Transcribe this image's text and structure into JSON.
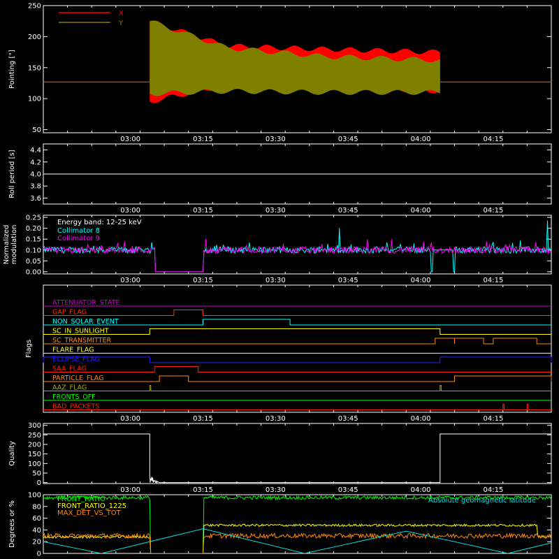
{
  "time_axis": {
    "start": "02:42",
    "end": "04:27",
    "ticks": [
      "03:00",
      "03:15",
      "03:30",
      "03:45",
      "04:00",
      "04:15"
    ]
  },
  "chart_data": [
    {
      "type": "line",
      "ylabel": "Pointing [\"]",
      "ylim": [
        45,
        250
      ],
      "yticks": [
        50,
        100,
        150,
        200,
        250
      ],
      "legend_position": "top-left",
      "series": [
        {
          "name": "X",
          "color": "#ff0000",
          "baseline": 127,
          "active": [
            "03:04",
            "04:04"
          ],
          "envelope_upper": [
            [
              "03:04",
              225
            ],
            [
              "03:20",
              185
            ],
            [
              "03:40",
              180
            ],
            [
              "04:04",
              175
            ]
          ],
          "envelope_lower": [
            [
              "03:04",
              95
            ],
            [
              "03:20",
              122
            ],
            [
              "03:40",
              120
            ],
            [
              "04:04",
              112
            ]
          ]
        },
        {
          "name": "Y",
          "color": "#808000",
          "baseline": 127,
          "active": [
            "03:04",
            "04:04"
          ],
          "envelope_upper": [
            [
              "03:04",
              225
            ],
            [
              "03:20",
              182
            ],
            [
              "03:40",
              168
            ],
            [
              "04:04",
              162
            ]
          ],
          "envelope_lower": [
            [
              "03:04",
              108
            ],
            [
              "03:20",
              112
            ],
            [
              "03:40",
              110
            ],
            [
              "04:04",
              110
            ]
          ]
        }
      ]
    },
    {
      "type": "line",
      "ylabel": "Roll period [s]",
      "ylim": [
        3.5,
        4.5
      ],
      "yticks": [
        3.6,
        3.8,
        4.0,
        4.2,
        4.4
      ],
      "series": [
        {
          "color": "#ffffff",
          "value": 4.0
        }
      ]
    },
    {
      "type": "line",
      "ylabel": "Normalized\nmodulation",
      "ylim": [
        -0.01,
        0.26
      ],
      "yticks": [
        0.0,
        0.05,
        0.1,
        0.15,
        0.2,
        0.25
      ],
      "annotation": "Energy band: 12-25 keV",
      "series": [
        {
          "name": "Collimator 8",
          "color": "#00ffff",
          "mean": 0.1,
          "gap": [
            "03:05",
            "03:15"
          ],
          "dropout": [
            "04:02",
            "04:07"
          ]
        },
        {
          "name": "Collimator 9",
          "color": "#ff00ff",
          "mean": 0.1,
          "gap": [
            "03:05",
            "03:15"
          ]
        }
      ]
    },
    {
      "type": "step",
      "ylabel": "Flags",
      "flags": [
        {
          "name": "ATTENUATOR_STATE",
          "color": "#cc00cc",
          "on": []
        },
        {
          "name": "GAP_FLAG",
          "color": "#ff3300",
          "on": [
            [
              "03:09",
              "03:15"
            ]
          ]
        },
        {
          "name": "NON_SOLAR_EVENT",
          "color": "#00ffff",
          "on": [
            [
              "03:15",
              "03:33"
            ]
          ]
        },
        {
          "name": "SC_IN_SUNLIGHT",
          "color": "#ffff00",
          "on": [
            [
              "03:04",
              "04:04"
            ]
          ]
        },
        {
          "name": "SC_TRANSMITTER",
          "color": "#ff8800",
          "on": [
            [
              "04:03",
              "04:07"
            ],
            [
              "04:07",
              "04:13"
            ],
            [
              "04:15",
              "04:24"
            ]
          ]
        },
        {
          "name": "FLARE_FLAG",
          "color": "#ffff44",
          "on": []
        },
        {
          "name": "ECLIPSE_FLAG",
          "color": "#2222ff",
          "on": [
            [
              "02:42",
              "03:04"
            ],
            [
              "04:04",
              "04:27"
            ]
          ]
        },
        {
          "name": "SAA_FLAG",
          "color": "#ff2200",
          "on": [
            [
              "03:05",
              "03:14"
            ]
          ]
        },
        {
          "name": "PARTICLE_FLAG",
          "color": "#ff8800",
          "on": [
            [
              "03:06",
              "03:12"
            ],
            [
              "04:07",
              "04:27"
            ]
          ]
        },
        {
          "name": "AAZ_FLAG",
          "color": "#aaaa00",
          "on": [
            [
              "03:04",
              "03:04"
            ],
            [
              "04:04",
              "04:04"
            ]
          ]
        },
        {
          "name": "FRONTS_OFF",
          "color": "#00ff00",
          "on": []
        },
        {
          "name": "BAD_PACKETS",
          "color": "#ff2200",
          "on": [
            [
              "04:17",
              "04:17"
            ],
            [
              "04:22",
              "04:22"
            ]
          ]
        }
      ]
    },
    {
      "type": "line",
      "ylabel": "Quality",
      "ylim": [
        -5,
        310
      ],
      "yticks": [
        0,
        50,
        100,
        150,
        200,
        250,
        300
      ],
      "series": [
        {
          "color": "#ffffff",
          "high": 255,
          "low": 0,
          "low_interval": [
            "03:04",
            "04:04"
          ]
        }
      ]
    },
    {
      "type": "line",
      "ylabel": "Degrees or %",
      "ylim": [
        0,
        100
      ],
      "yticks": [
        0,
        20,
        40,
        60,
        80,
        100
      ],
      "annotation": "Absolute geomagnetic latitude",
      "series": [
        {
          "name": "FRONT_RATIO",
          "color": "#00ff00",
          "mean": 95
        },
        {
          "name": "FRONT_RATIO_1225",
          "color": "#ffff00",
          "mean": 48
        },
        {
          "name": "MAX_DET_VS_TOT",
          "color": "#ff8800",
          "mean": 30
        },
        {
          "color": "#00dddd",
          "zigzag": [
            [
              "02:42",
              20
            ],
            [
              "02:54",
              0
            ],
            [
              "03:15",
              42
            ],
            [
              "03:36",
              0
            ],
            [
              "03:57",
              38
            ],
            [
              "04:18",
              0
            ],
            [
              "04:27",
              18
            ]
          ]
        }
      ]
    }
  ]
}
